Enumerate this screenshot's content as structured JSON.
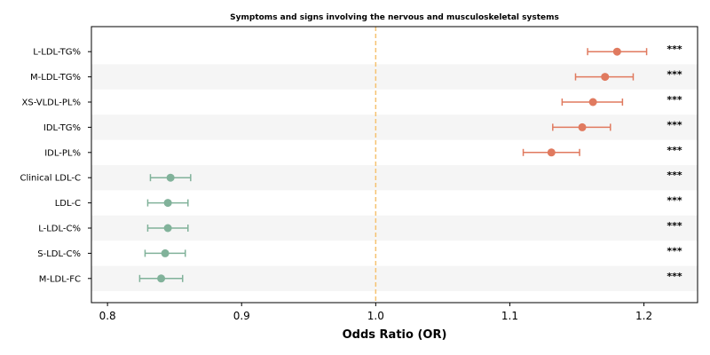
{
  "chart_data": {
    "type": "forest",
    "title": "Symptoms and signs involving the nervous and musculoskeletal systems",
    "xlabel": "Odds Ratio (OR)",
    "xlim": [
      0.788,
      1.24
    ],
    "xticks": [
      "0.8",
      "0.9",
      "1.0",
      "1.1",
      "1.2"
    ],
    "reference_line": 1.0,
    "reference_color": "#f5c271",
    "stripe_color": "#f5f5f5",
    "colors": {
      "positive": "#e07a5f",
      "negative": "#81b29a"
    },
    "rows": [
      {
        "label": "L-LDL-TG%",
        "or": 1.18,
        "lo": 1.158,
        "hi": 1.202,
        "sig": "***"
      },
      {
        "label": "M-LDL-TG%",
        "or": 1.171,
        "lo": 1.149,
        "hi": 1.192,
        "sig": "***"
      },
      {
        "label": "XS-VLDL-PL%",
        "or": 1.162,
        "lo": 1.139,
        "hi": 1.184,
        "sig": "***"
      },
      {
        "label": "IDL-TG%",
        "or": 1.154,
        "lo": 1.132,
        "hi": 1.175,
        "sig": "***"
      },
      {
        "label": "IDL-PL%",
        "or": 1.131,
        "lo": 1.11,
        "hi": 1.152,
        "sig": "***"
      },
      {
        "label": "Clinical LDL-C",
        "or": 0.847,
        "lo": 0.832,
        "hi": 0.862,
        "sig": "***"
      },
      {
        "label": "LDL-C",
        "or": 0.845,
        "lo": 0.83,
        "hi": 0.86,
        "sig": "***"
      },
      {
        "label": "L-LDL-C%",
        "or": 0.845,
        "lo": 0.83,
        "hi": 0.86,
        "sig": "***"
      },
      {
        "label": "S-LDL-C%",
        "or": 0.843,
        "lo": 0.828,
        "hi": 0.858,
        "sig": "***"
      },
      {
        "label": "M-LDL-FC",
        "or": 0.84,
        "lo": 0.824,
        "hi": 0.856,
        "sig": "***"
      }
    ]
  }
}
